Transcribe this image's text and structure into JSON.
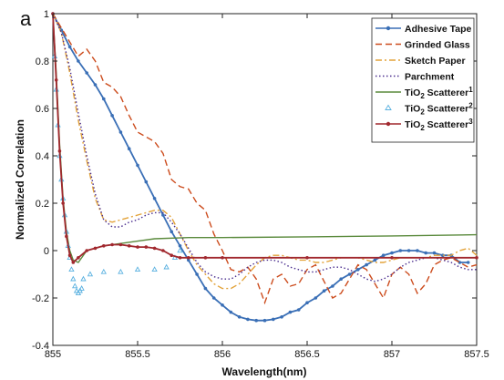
{
  "panel_label": "a",
  "chart_data": {
    "type": "line",
    "xlabel": "Wavelength(nm)",
    "ylabel": "Normalized Correlation",
    "xlim": [
      855,
      857.5
    ],
    "ylim": [
      -0.4,
      1
    ],
    "xticks": [
      "855",
      "855.5",
      "856",
      "856.5",
      "857",
      "857.5"
    ],
    "yticks": [
      "-0.4",
      "-0.2",
      "0",
      "0.2",
      "0.4",
      "0.6",
      "0.8",
      "1"
    ],
    "grid": false,
    "legend_position": "top-right",
    "series": [
      {
        "name": "Adhesive Tape",
        "color": "#3a6fb6",
        "style": "solid-dots",
        "x": [
          855,
          855.05,
          855.1,
          855.15,
          855.2,
          855.25,
          855.3,
          855.35,
          855.4,
          855.45,
          855.5,
          855.55,
          855.6,
          855.65,
          855.7,
          855.75,
          855.8,
          855.85,
          855.9,
          855.95,
          856,
          856.05,
          856.1,
          856.15,
          856.2,
          856.25,
          856.3,
          856.35,
          856.4,
          856.45,
          856.5,
          856.55,
          856.6,
          856.65,
          856.7,
          856.75,
          856.8,
          856.85,
          856.9,
          856.95,
          857,
          857.05,
          857.1,
          857.15,
          857.2,
          857.25,
          857.3,
          857.35,
          857.4,
          857.45
        ],
        "y": [
          1.0,
          0.93,
          0.86,
          0.8,
          0.75,
          0.7,
          0.64,
          0.57,
          0.5,
          0.43,
          0.36,
          0.29,
          0.22,
          0.15,
          0.08,
          0.02,
          -0.04,
          -0.1,
          -0.16,
          -0.2,
          -0.23,
          -0.26,
          -0.28,
          -0.29,
          -0.295,
          -0.295,
          -0.29,
          -0.28,
          -0.26,
          -0.25,
          -0.22,
          -0.2,
          -0.17,
          -0.15,
          -0.12,
          -0.1,
          -0.08,
          -0.06,
          -0.04,
          -0.02,
          -0.01,
          0.0,
          0.0,
          0.0,
          -0.01,
          -0.01,
          -0.02,
          -0.02,
          -0.05,
          -0.05
        ]
      },
      {
        "name": "Grinded Glass",
        "color": "#cc4b1c",
        "style": "dashed",
        "x": [
          855,
          855.05,
          855.1,
          855.15,
          855.2,
          855.25,
          855.3,
          855.35,
          855.4,
          855.45,
          855.5,
          855.55,
          855.6,
          855.65,
          855.7,
          855.75,
          855.8,
          855.85,
          855.9,
          855.95,
          856,
          856.05,
          856.1,
          856.15,
          856.2,
          856.25,
          856.3,
          856.35,
          856.4,
          856.45,
          856.5,
          856.55,
          856.6,
          856.65,
          856.7,
          856.75,
          856.8,
          856.85,
          856.9,
          856.95,
          857,
          857.05,
          857.1,
          857.15,
          857.2,
          857.25,
          857.3,
          857.35,
          857.4,
          857.45,
          857.5
        ],
        "y": [
          1.0,
          0.94,
          0.88,
          0.82,
          0.85,
          0.8,
          0.71,
          0.69,
          0.65,
          0.57,
          0.5,
          0.48,
          0.46,
          0.41,
          0.3,
          0.27,
          0.26,
          0.2,
          0.17,
          0.07,
          0.0,
          -0.08,
          -0.09,
          -0.07,
          -0.12,
          -0.22,
          -0.12,
          -0.1,
          -0.15,
          -0.14,
          -0.08,
          -0.06,
          -0.13,
          -0.2,
          -0.18,
          -0.12,
          -0.06,
          -0.08,
          -0.14,
          -0.2,
          -0.1,
          -0.07,
          -0.1,
          -0.18,
          -0.14,
          -0.06,
          -0.04,
          -0.03,
          -0.05,
          -0.07,
          -0.06
        ]
      },
      {
        "name": "Sketch Paper",
        "color": "#e3a33a",
        "style": "dashdot",
        "x": [
          855,
          855.05,
          855.1,
          855.15,
          855.2,
          855.25,
          855.3,
          855.35,
          855.4,
          855.45,
          855.5,
          855.55,
          855.6,
          855.65,
          855.7,
          855.75,
          855.8,
          855.85,
          855.9,
          855.95,
          856,
          856.05,
          856.1,
          856.15,
          856.2,
          856.25,
          856.3,
          856.35,
          856.4,
          856.45,
          856.5,
          856.55,
          856.6,
          856.65,
          856.7,
          856.75,
          856.8,
          856.85,
          856.9,
          856.95,
          857,
          857.05,
          857.1,
          857.15,
          857.2,
          857.25,
          857.3,
          857.35,
          857.4,
          857.45,
          857.5
        ],
        "y": [
          1.0,
          0.92,
          0.75,
          0.55,
          0.38,
          0.22,
          0.13,
          0.12,
          0.13,
          0.14,
          0.15,
          0.16,
          0.17,
          0.17,
          0.14,
          0.07,
          0.0,
          -0.06,
          -0.1,
          -0.14,
          -0.16,
          -0.16,
          -0.14,
          -0.1,
          -0.06,
          -0.03,
          -0.02,
          -0.02,
          -0.03,
          -0.04,
          -0.04,
          -0.05,
          -0.05,
          -0.04,
          -0.03,
          -0.03,
          -0.03,
          -0.04,
          -0.05,
          -0.05,
          -0.04,
          -0.03,
          -0.03,
          -0.03,
          -0.03,
          -0.02,
          -0.02,
          -0.02,
          0.0,
          0.01,
          -0.02
        ]
      },
      {
        "name": "Parchment",
        "color": "#4a2d8e",
        "style": "dotted",
        "x": [
          855,
          855.05,
          855.1,
          855.15,
          855.2,
          855.25,
          855.3,
          855.35,
          855.4,
          855.45,
          855.5,
          855.55,
          855.6,
          855.65,
          855.7,
          855.75,
          855.8,
          855.85,
          855.9,
          855.95,
          856,
          856.05,
          856.1,
          856.15,
          856.2,
          856.25,
          856.3,
          856.35,
          856.4,
          856.45,
          856.5,
          856.55,
          856.6,
          856.65,
          856.7,
          856.75,
          856.8,
          856.85,
          856.9,
          856.95,
          857,
          857.05,
          857.1,
          857.15,
          857.2,
          857.25,
          857.3,
          857.35,
          857.4,
          857.45,
          857.5
        ],
        "y": [
          1.0,
          0.92,
          0.77,
          0.58,
          0.4,
          0.24,
          0.13,
          0.1,
          0.1,
          0.12,
          0.13,
          0.15,
          0.16,
          0.16,
          0.12,
          0.07,
          0.01,
          -0.05,
          -0.09,
          -0.11,
          -0.12,
          -0.12,
          -0.1,
          -0.07,
          -0.05,
          -0.04,
          -0.04,
          -0.05,
          -0.07,
          -0.08,
          -0.09,
          -0.09,
          -0.08,
          -0.07,
          -0.07,
          -0.08,
          -0.1,
          -0.12,
          -0.13,
          -0.12,
          -0.1,
          -0.07,
          -0.05,
          -0.04,
          -0.03,
          -0.03,
          -0.04,
          -0.05,
          -0.07,
          -0.08,
          -0.08
        ]
      },
      {
        "name": "TiO2 Scatterer1",
        "color": "#5a8a3c",
        "style": "solid",
        "x": [
          855,
          855.02,
          855.04,
          855.06,
          855.08,
          855.1,
          855.12,
          855.15,
          855.2,
          855.3,
          855.4,
          855.5,
          855.6,
          855.8,
          856,
          856.5,
          857,
          857.5
        ],
        "y": [
          1.0,
          0.75,
          0.45,
          0.22,
          0.08,
          0.0,
          -0.04,
          -0.05,
          0.0,
          0.02,
          0.03,
          0.04,
          0.05,
          0.055,
          0.055,
          0.058,
          0.062,
          0.067
        ]
      },
      {
        "name": "TiO2 Scatterer2",
        "color": "#5ab1e0",
        "style": "triangles",
        "x": [
          855.01,
          855.02,
          855.03,
          855.04,
          855.05,
          855.06,
          855.07,
          855.08,
          855.09,
          855.1,
          855.11,
          855.12,
          855.13,
          855.14,
          855.15,
          855.16,
          855.17,
          855.18,
          855.22,
          855.3,
          855.4,
          855.5,
          855.6,
          855.67,
          855.72,
          855.75
        ],
        "y": [
          0.82,
          0.68,
          0.53,
          0.4,
          0.3,
          0.22,
          0.15,
          0.08,
          0.02,
          -0.03,
          -0.08,
          -0.12,
          -0.15,
          -0.17,
          -0.18,
          -0.17,
          -0.16,
          -0.12,
          -0.1,
          -0.09,
          -0.09,
          -0.08,
          -0.08,
          -0.07,
          -0.03,
          0.0
        ]
      },
      {
        "name": "TiO2 Scatterer3",
        "color": "#a1282e",
        "style": "solid-dots",
        "x": [
          855,
          855.02,
          855.04,
          855.06,
          855.08,
          855.1,
          855.12,
          855.15,
          855.2,
          855.25,
          855.3,
          855.35,
          855.4,
          855.45,
          855.5,
          855.55,
          855.6,
          855.65,
          855.7,
          855.75,
          855.8,
          855.9,
          856,
          856.5,
          857,
          857.5
        ],
        "y": [
          1.0,
          0.72,
          0.42,
          0.2,
          0.06,
          -0.02,
          -0.05,
          -0.03,
          0.0,
          0.01,
          0.02,
          0.025,
          0.025,
          0.02,
          0.015,
          0.015,
          0.01,
          0.0,
          -0.02,
          -0.03,
          -0.03,
          -0.03,
          -0.03,
          -0.03,
          -0.03,
          -0.03
        ]
      }
    ]
  },
  "legend": [
    {
      "text": "Adhesive Tape",
      "sub": "",
      "sup": ""
    },
    {
      "text": "Grinded Glass",
      "sub": "",
      "sup": ""
    },
    {
      "text": "Sketch Paper",
      "sub": "",
      "sup": ""
    },
    {
      "text": "Parchment",
      "sub": "",
      "sup": ""
    },
    {
      "text": "TiO",
      "sub": "2",
      "after": " Scatterer",
      "sup": "1"
    },
    {
      "text": "TiO",
      "sub": "2",
      "after": " Scatterer",
      "sup": "2"
    },
    {
      "text": "TiO",
      "sub": "2",
      "after": " Scatterer",
      "sup": "3"
    }
  ]
}
